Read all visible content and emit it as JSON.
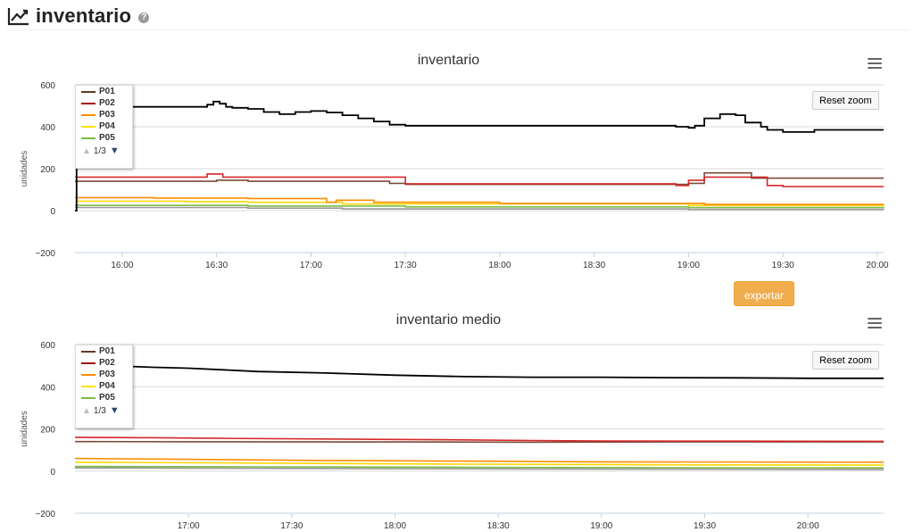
{
  "header": {
    "title": "inventario",
    "help_icon": "question-circle-icon",
    "trend_icon": "line-chart-icon"
  },
  "export_label": "exportar",
  "chart_data": [
    {
      "type": "line",
      "title": "inventario",
      "ylabel": "unidades",
      "ylim": [
        -200,
        600
      ],
      "yticks": [
        -200,
        0,
        200,
        400,
        600
      ],
      "ytick_labels": [
        "−200",
        "0",
        "200",
        "400",
        "600"
      ],
      "xlim": [
        945,
        1202
      ],
      "xticks": [
        960,
        990,
        1020,
        1050,
        1080,
        1110,
        1140,
        1170,
        1200
      ],
      "xtick_labels": [
        "16:00",
        "16:30",
        "17:00",
        "17:30",
        "18:00",
        "18:30",
        "19:00",
        "19:30",
        "20:00"
      ],
      "reset_label": "Reset zoom",
      "legend": {
        "items": [
          "P01",
          "P02",
          "P03",
          "P04",
          "P05"
        ],
        "pager": "1/3",
        "placement": "top-left"
      },
      "grid": true,
      "series": [
        {
          "name": "",
          "color": "#000000",
          "x": [
            945,
            945.5,
            985,
            987,
            989,
            991,
            993,
            995,
            1000,
            1005,
            1010,
            1015,
            1020,
            1025,
            1030,
            1035,
            1040,
            1045,
            1050,
            1080,
            1110,
            1135,
            1136,
            1140,
            1142,
            1145,
            1150,
            1155,
            1158,
            1160,
            1163,
            1165,
            1170,
            1180,
            1202
          ],
          "y": [
            0,
            495,
            495,
            505,
            520,
            510,
            495,
            490,
            485,
            470,
            460,
            470,
            475,
            468,
            455,
            440,
            425,
            410,
            405,
            405,
            405,
            405,
            400,
            395,
            405,
            440,
            460,
            455,
            420,
            420,
            400,
            385,
            375,
            385,
            385
          ]
        },
        {
          "name": "",
          "color": "#d62728",
          "x": [
            945,
            985,
            987,
            992,
            1000,
            1030,
            1050,
            1080,
            1110,
            1135,
            1136,
            1140,
            1145,
            1160,
            1165,
            1170,
            1202
          ],
          "y": [
            160,
            160,
            175,
            160,
            160,
            160,
            128,
            128,
            128,
            128,
            120,
            145,
            160,
            160,
            120,
            115,
            115
          ]
        },
        {
          "name": "",
          "color": "#7a4a3a",
          "x": [
            945,
            985,
            990,
            1000,
            1030,
            1045,
            1050,
            1080,
            1110,
            1140,
            1145,
            1160,
            1202
          ],
          "y": [
            140,
            140,
            145,
            140,
            140,
            130,
            125,
            125,
            125,
            130,
            180,
            155,
            155
          ]
        },
        {
          "name": "",
          "color": "#ff8c00",
          "x": [
            945,
            970,
            1000,
            1025,
            1028,
            1040,
            1080,
            1110,
            1140,
            1145,
            1202
          ],
          "y": [
            62,
            60,
            58,
            40,
            50,
            40,
            35,
            35,
            35,
            30,
            30
          ]
        },
        {
          "name": "",
          "color": "#ffd700",
          "x": [
            945,
            980,
            1000,
            1030,
            1080,
            1140,
            1202
          ],
          "y": [
            45,
            43,
            40,
            32,
            32,
            25,
            22
          ]
        },
        {
          "name": "",
          "color": "#7dbb42",
          "x": [
            945,
            1000,
            1050,
            1080,
            1140,
            1202
          ],
          "y": [
            25,
            22,
            18,
            18,
            15,
            12
          ]
        },
        {
          "name": "",
          "color": "#999999",
          "x": [
            945,
            1000,
            1030,
            1080,
            1140,
            1202
          ],
          "y": [
            15,
            12,
            8,
            8,
            6,
            5
          ]
        }
      ]
    },
    {
      "type": "line",
      "title": "inventario medio",
      "ylabel": "unidades",
      "ylim": [
        -200,
        600
      ],
      "yticks": [
        -200,
        0,
        200,
        400,
        600
      ],
      "ytick_labels": [
        "−200",
        "0",
        "200",
        "400",
        "600"
      ],
      "xlim": [
        987,
        1222
      ],
      "xticks": [
        1020,
        1050,
        1080,
        1110,
        1140,
        1170,
        1200
      ],
      "xtick_labels": [
        "17:00",
        "17:30",
        "18:00",
        "18:30",
        "19:00",
        "19:30",
        "20:00"
      ],
      "reset_label": "Reset zoom",
      "legend": {
        "items": [
          "P01",
          "P02",
          "P03",
          "P04",
          "P05"
        ],
        "pager": "1/3",
        "placement": "top-left"
      },
      "grid": true,
      "series": [
        {
          "name": "",
          "color": "#000000",
          "x": [
            987,
            1000,
            1010,
            1020,
            1030,
            1040,
            1060,
            1080,
            1100,
            1120,
            1140,
            1160,
            1180,
            1200,
            1222
          ],
          "y": [
            500,
            498,
            492,
            488,
            480,
            472,
            465,
            455,
            448,
            445,
            445,
            443,
            442,
            440,
            440
          ]
        },
        {
          "name": "",
          "color": "#d62728",
          "x": [
            987,
            1010,
            1030,
            1060,
            1080,
            1100,
            1120,
            1140,
            1180,
            1222
          ],
          "y": [
            160,
            158,
            155,
            152,
            150,
            148,
            145,
            143,
            142,
            141
          ]
        },
        {
          "name": "",
          "color": "#7a4a3a",
          "x": [
            987,
            1030,
            1080,
            1120,
            1160,
            1222
          ],
          "y": [
            140,
            139,
            138,
            137,
            138,
            138
          ]
        },
        {
          "name": "",
          "color": "#ff8c00",
          "x": [
            987,
            1010,
            1060,
            1100,
            1140,
            1222
          ],
          "y": [
            60,
            57,
            50,
            47,
            44,
            42
          ]
        },
        {
          "name": "",
          "color": "#ffd700",
          "x": [
            987,
            1040,
            1100,
            1160,
            1222
          ],
          "y": [
            42,
            38,
            33,
            30,
            28
          ]
        },
        {
          "name": "",
          "color": "#7dbb42",
          "x": [
            987,
            1040,
            1100,
            1160,
            1222
          ],
          "y": [
            22,
            20,
            18,
            16,
            15
          ]
        },
        {
          "name": "",
          "color": "#999999",
          "x": [
            987,
            1060,
            1120,
            1222
          ],
          "y": [
            15,
            12,
            10,
            8
          ]
        }
      ]
    }
  ],
  "legend_colors": [
    "#5d3a2a",
    "#a01010",
    "#ff8c00",
    "#ffe000",
    "#7dbb42"
  ]
}
